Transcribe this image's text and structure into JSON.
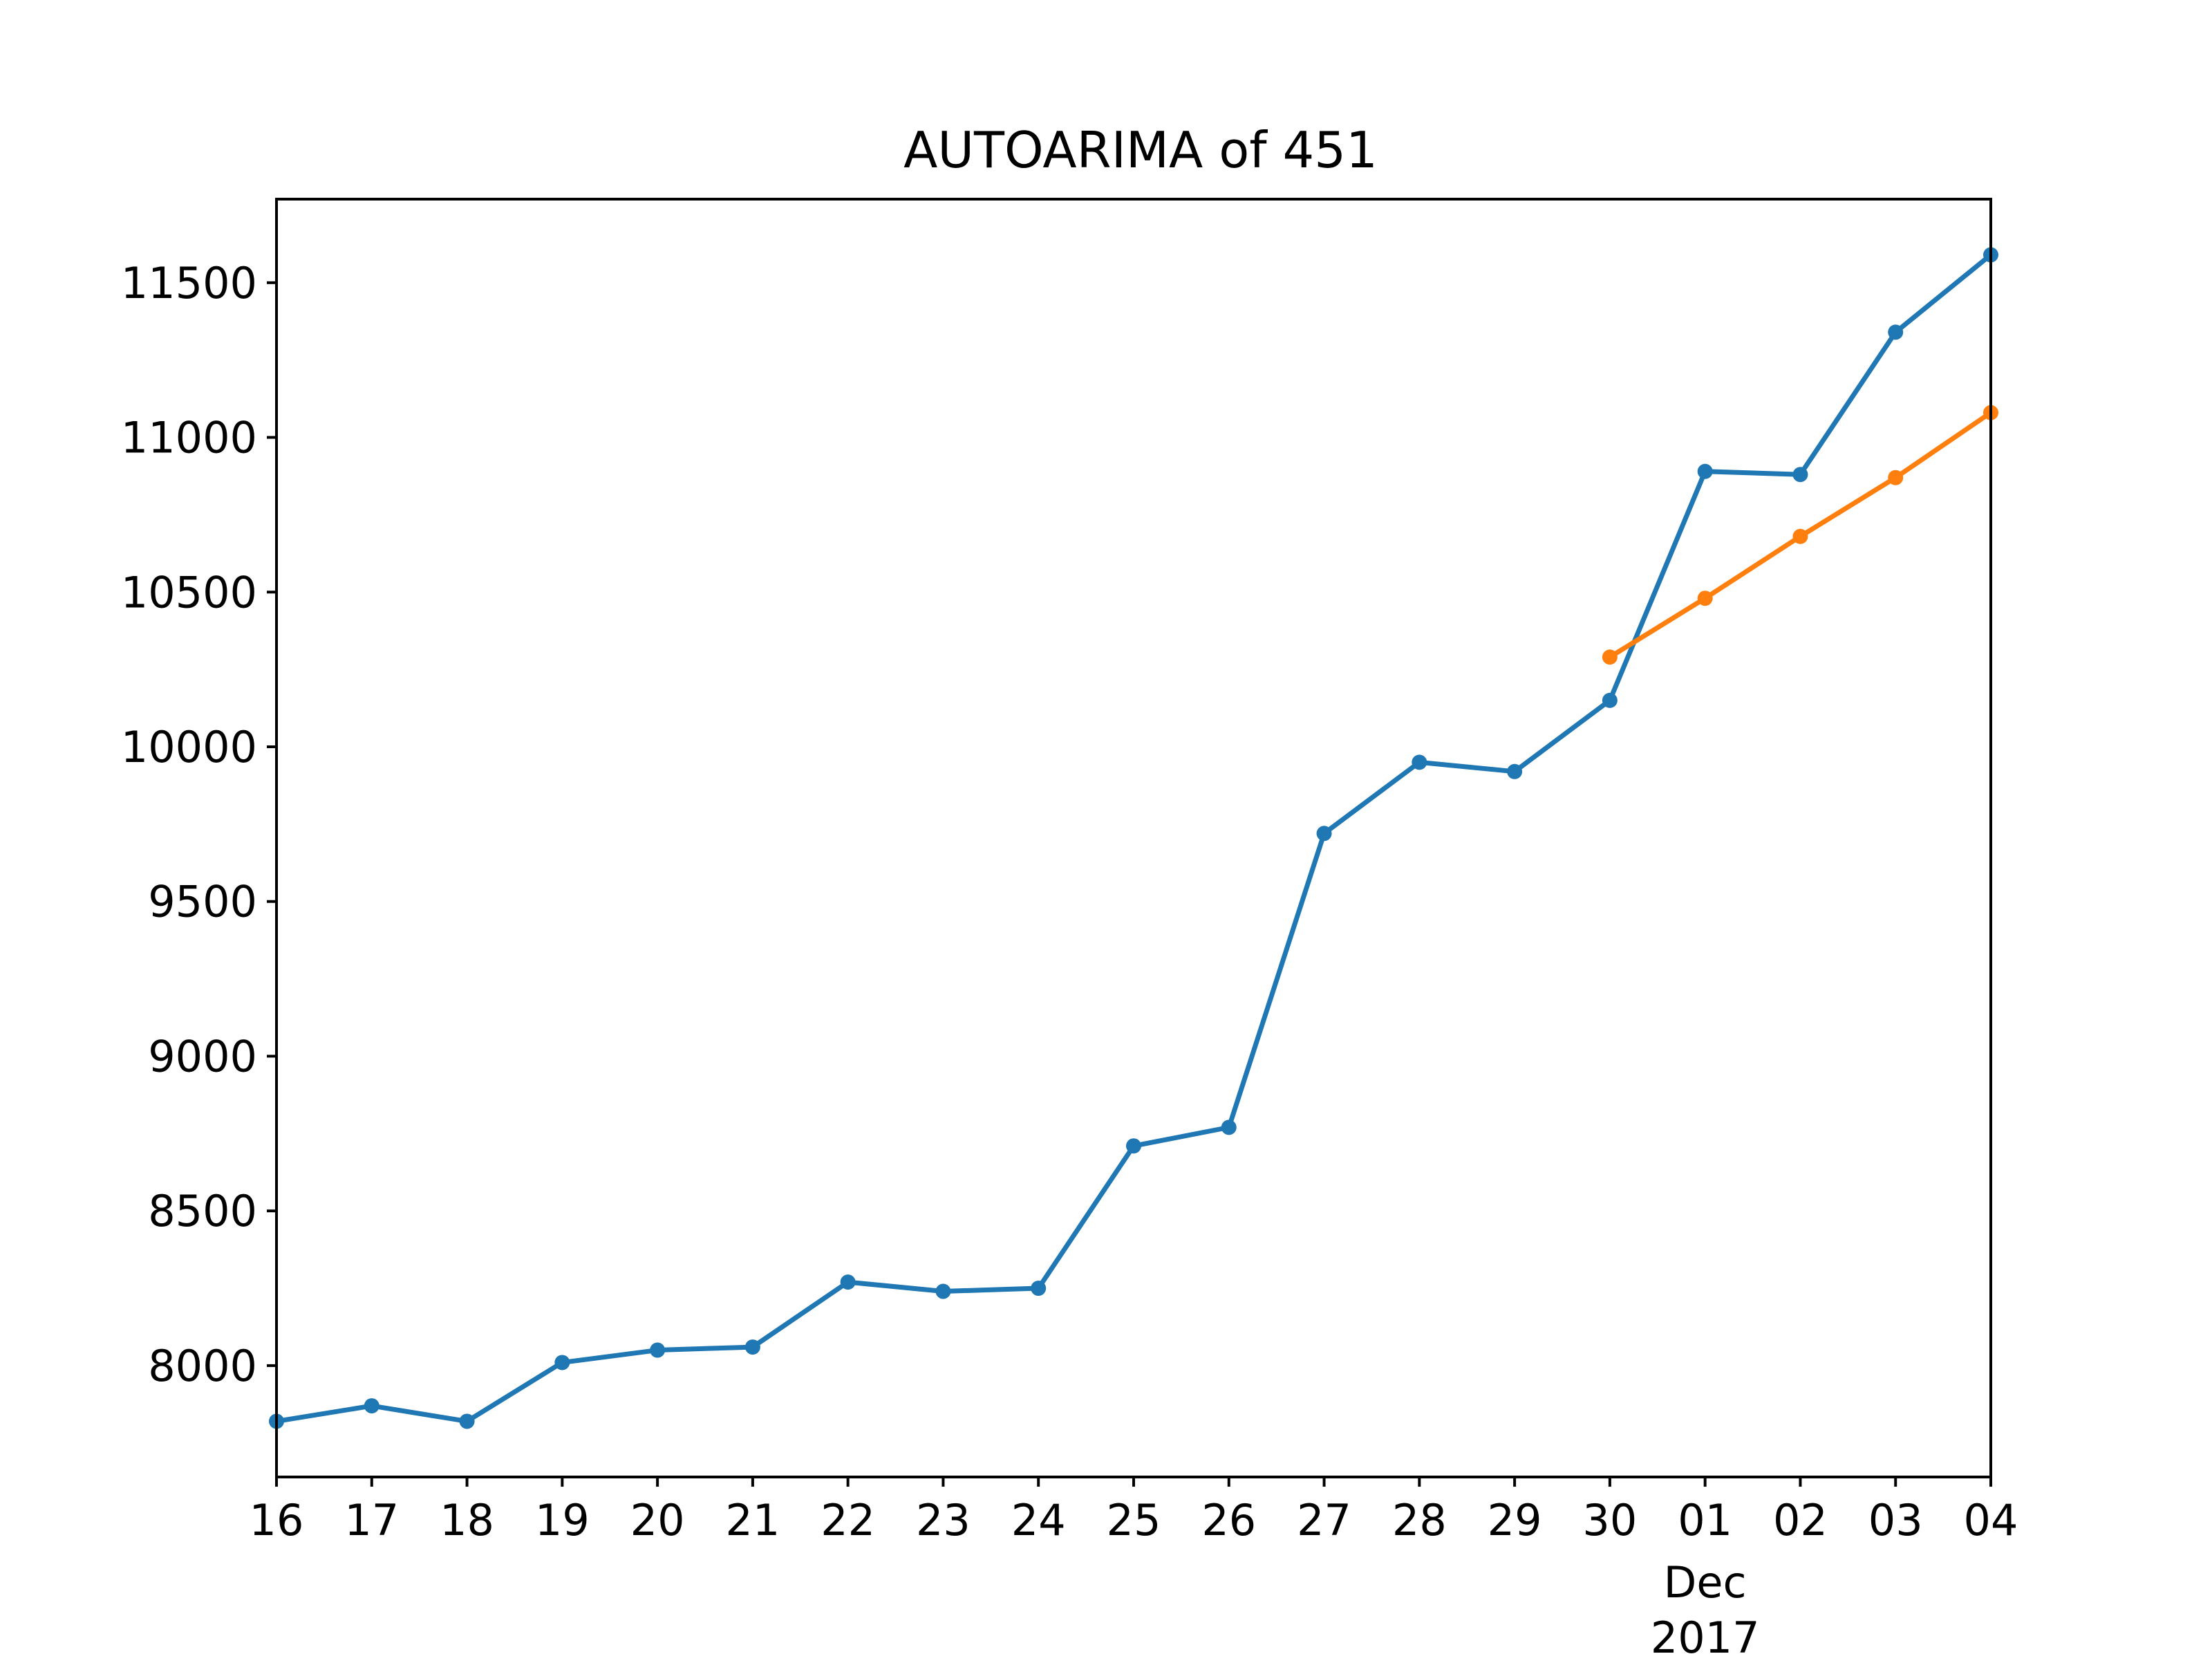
{
  "chart_data": {
    "type": "line",
    "title": "AUTOARIMA of 451",
    "xlabel": "",
    "ylabel": "",
    "x": [
      "16",
      "17",
      "18",
      "19",
      "20",
      "21",
      "22",
      "23",
      "24",
      "25",
      "26",
      "27",
      "28",
      "29",
      "30",
      "01",
      "02",
      "03",
      "04"
    ],
    "x_secondary_label": [
      "Dec",
      "2017"
    ],
    "ylim": [
      7640,
      11770
    ],
    "yticks": [
      8000,
      8500,
      9000,
      9500,
      10000,
      10500,
      11000,
      11500
    ],
    "grid": false,
    "series": [
      {
        "color": "#1f77b4",
        "values": [
          7820,
          7870,
          7820,
          8010,
          8050,
          8060,
          8270,
          8240,
          8250,
          8710,
          8770,
          9720,
          9950,
          9920,
          10150,
          10890,
          10880,
          11340,
          11590
        ]
      },
      {
        "color": "#ff7f0e",
        "values": [
          null,
          null,
          null,
          null,
          null,
          null,
          null,
          null,
          null,
          null,
          null,
          null,
          null,
          null,
          10290,
          10480,
          10680,
          10870,
          11080
        ]
      }
    ]
  }
}
